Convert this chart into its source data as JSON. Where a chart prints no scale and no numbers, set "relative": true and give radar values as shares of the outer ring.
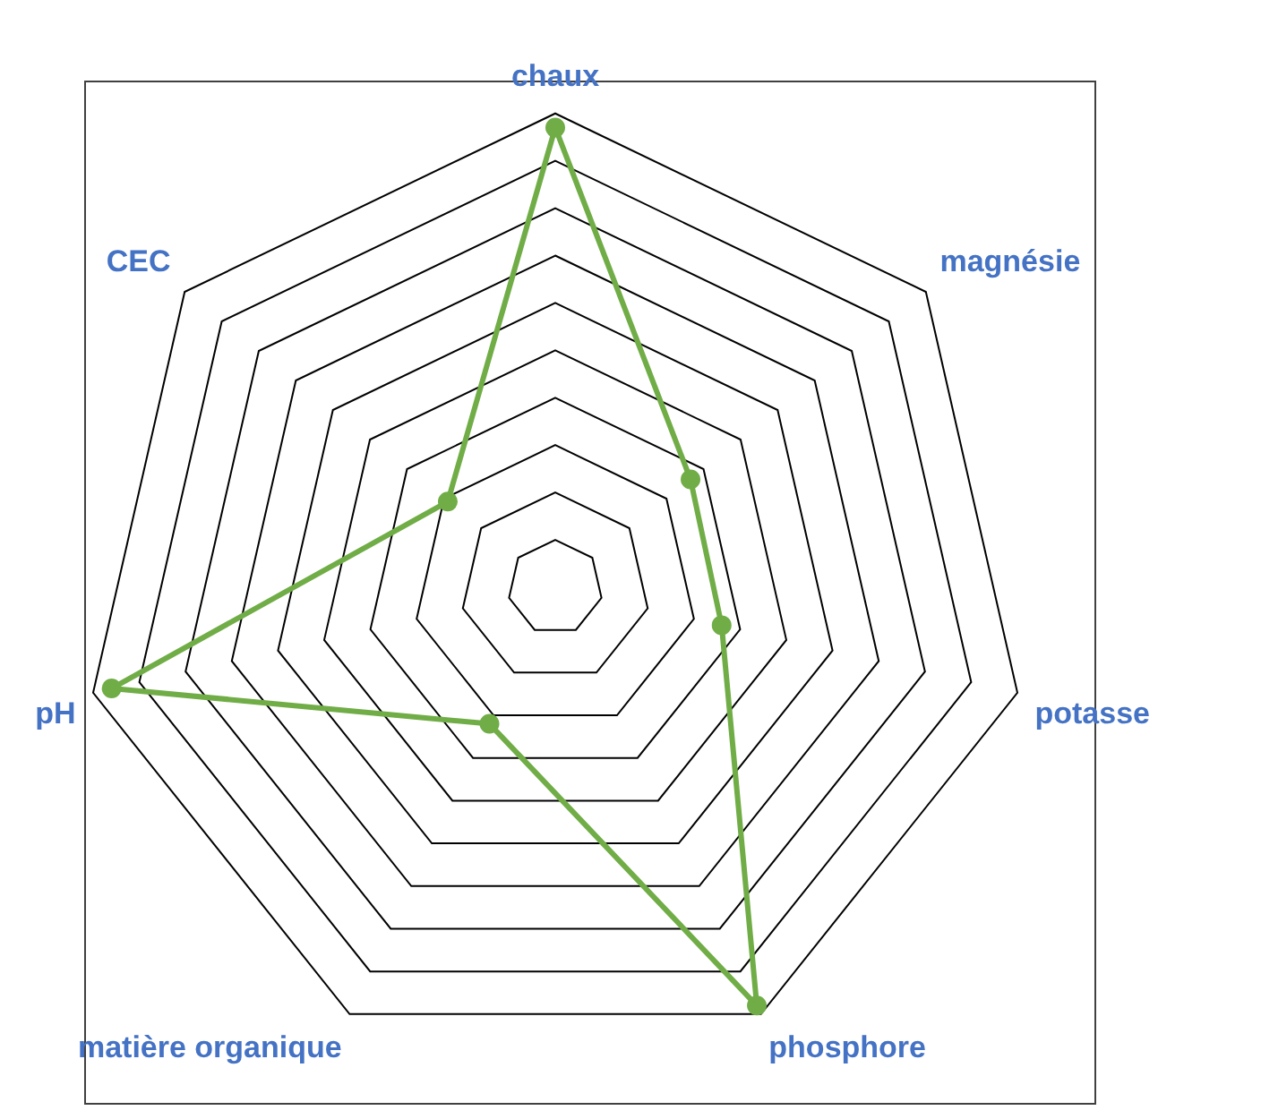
{
  "chart_data": {
    "type": "radar",
    "relative": true,
    "grid": true,
    "legend": false,
    "marker": "circle",
    "categories": [
      "chaux",
      "magnésie",
      "potasse",
      "phosphore",
      "matière organique",
      "pH",
      "CEC"
    ],
    "series": [
      {
        "color": "#70ad47",
        "values": [
          0.97,
          0.365,
          0.36,
          0.98,
          0.32,
          0.96,
          0.29
        ]
      }
    ]
  }
}
